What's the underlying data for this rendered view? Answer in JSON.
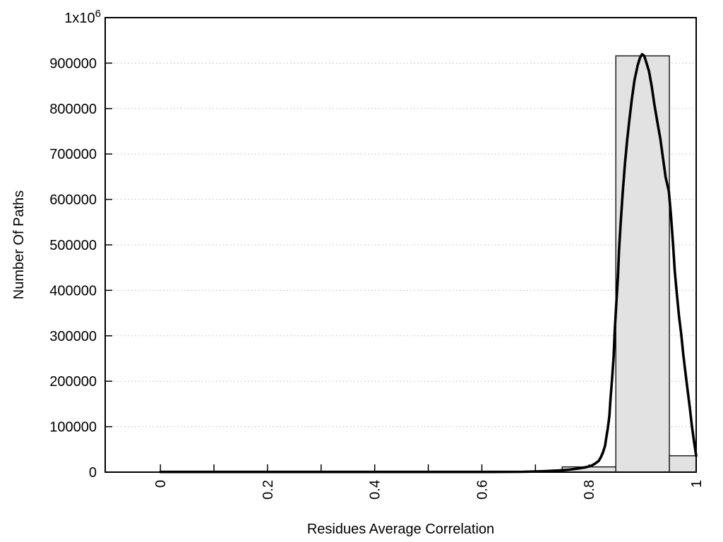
{
  "chart_data": {
    "type": "histogram",
    "title": "",
    "xlabel": "Residues Average Correlation",
    "ylabel": "Number Of Paths",
    "xlim": [
      -0.103,
      1.0
    ],
    "ylim": [
      0,
      1000000
    ],
    "grid": "horizontal-dotted",
    "legend": "none",
    "colors": {
      "bar_fill": "#e2e2e2",
      "bar_edge": "#000000",
      "curve": "#000000",
      "grid": "#b8b8b8",
      "axis": "#000000",
      "background": "#ffffff"
    },
    "bars": [
      {
        "x0": 0.75,
        "x1": 0.85,
        "count": 11500
      },
      {
        "x0": 0.85,
        "x1": 0.95,
        "count": 916000
      },
      {
        "x0": 0.95,
        "x1": 1.0,
        "count": 36000
      }
    ],
    "x_ticks": {
      "minor_step": 0.1,
      "minor_range": [
        0,
        1
      ],
      "labeled": [
        {
          "v": 0,
          "label": "0"
        },
        {
          "v": 0.2,
          "label": "0.2"
        },
        {
          "v": 0.4,
          "label": "0.4"
        },
        {
          "v": 0.6,
          "label": "0.6"
        },
        {
          "v": 0.8,
          "label": "0.8"
        },
        {
          "v": 1,
          "label": "1"
        }
      ],
      "label_rotation": -90
    },
    "y_ticks": [
      {
        "v": 0,
        "label": "0"
      },
      {
        "v": 100000,
        "label": "100000"
      },
      {
        "v": 200000,
        "label": "200000"
      },
      {
        "v": 300000,
        "label": "300000"
      },
      {
        "v": 400000,
        "label": "400000"
      },
      {
        "v": 500000,
        "label": "500000"
      },
      {
        "v": 600000,
        "label": "600000"
      },
      {
        "v": 700000,
        "label": "700000"
      },
      {
        "v": 800000,
        "label": "800000"
      },
      {
        "v": 900000,
        "label": "900000"
      },
      {
        "v": 1000000,
        "label": "1x10",
        "sup": "6"
      }
    ],
    "curve": {
      "name": "gaussian-fit-curve",
      "peak": {
        "x": 0.899,
        "value": 919500
      },
      "points": [
        [
          0,
          500
        ],
        [
          0.23,
          500
        ],
        [
          0.49,
          500
        ],
        [
          0.62,
          500
        ],
        [
          0.677,
          800
        ],
        [
          0.716,
          2000
        ],
        [
          0.743,
          3500
        ],
        [
          0.763,
          5500
        ],
        [
          0.78,
          8000
        ],
        [
          0.793,
          10500
        ],
        [
          0.803,
          13500
        ],
        [
          0.811,
          18500
        ],
        [
          0.818,
          24500
        ],
        [
          0.822,
          32500
        ],
        [
          0.826,
          43500
        ],
        [
          0.83,
          58000
        ],
        [
          0.832,
          74000
        ],
        [
          0.835,
          96000
        ],
        [
          0.838,
          124000
        ],
        [
          0.84,
          160000
        ],
        [
          0.843,
          205000
        ],
        [
          0.846,
          254000
        ],
        [
          0.848,
          312000
        ],
        [
          0.851,
          371000
        ],
        [
          0.854,
          430000
        ],
        [
          0.856,
          487000
        ],
        [
          0.859,
          546000
        ],
        [
          0.863,
          616000
        ],
        [
          0.867,
          678000
        ],
        [
          0.871,
          728000
        ],
        [
          0.875,
          771000
        ],
        [
          0.88,
          821000
        ],
        [
          0.885,
          863000
        ],
        [
          0.891,
          896000
        ],
        [
          0.895,
          911000
        ],
        [
          0.899,
          919500
        ],
        [
          0.903,
          916000
        ],
        [
          0.906,
          905000
        ],
        [
          0.912,
          882000
        ],
        [
          0.917,
          849000
        ],
        [
          0.922,
          809000
        ],
        [
          0.928,
          767000
        ],
        [
          0.933,
          734000
        ],
        [
          0.938,
          691000
        ],
        [
          0.943,
          649000
        ],
        [
          0.949,
          618000
        ],
        [
          0.953,
          565000
        ],
        [
          0.957,
          498000
        ],
        [
          0.96,
          444000
        ],
        [
          0.964,
          391000
        ],
        [
          0.968,
          343000
        ],
        [
          0.972,
          304000
        ],
        [
          0.976,
          258000
        ],
        [
          0.98,
          219000
        ],
        [
          0.984,
          180000
        ],
        [
          0.988,
          143000
        ],
        [
          0.992,
          102000
        ],
        [
          0.996,
          67000
        ],
        [
          1.0,
          36000
        ]
      ]
    }
  }
}
